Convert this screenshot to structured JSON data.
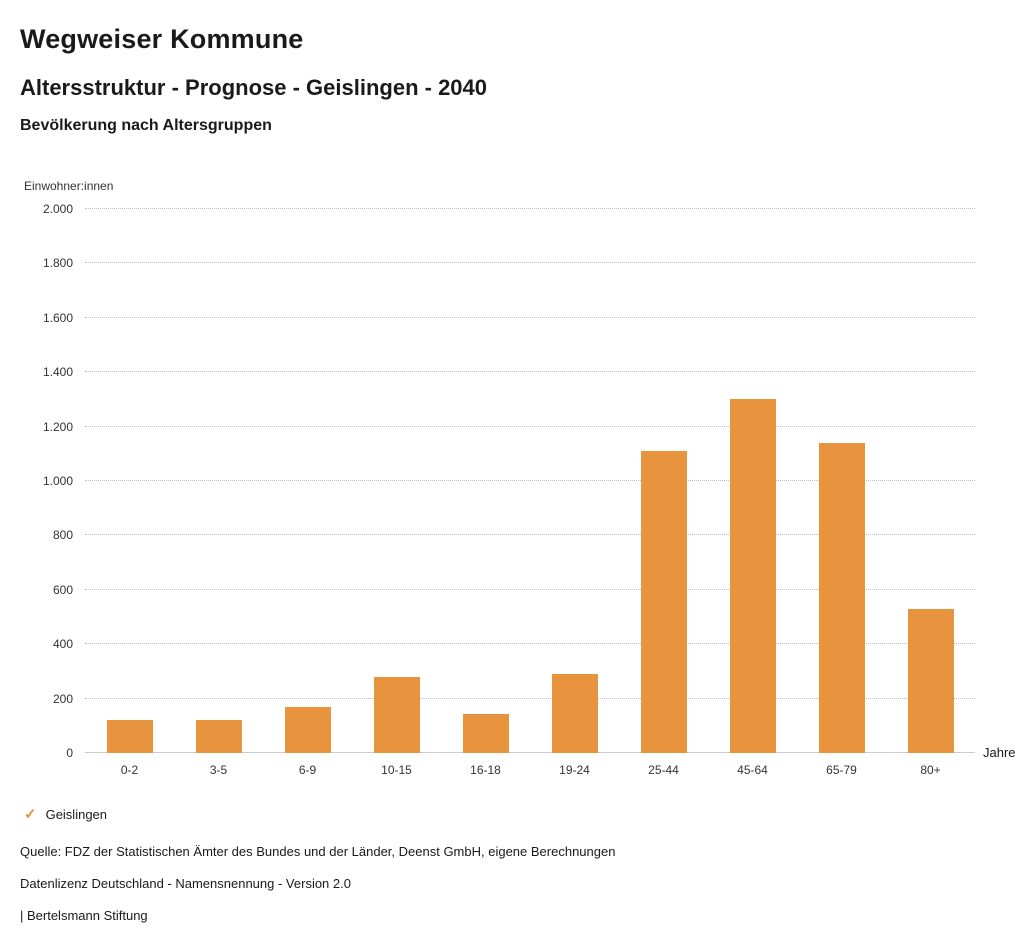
{
  "header": {
    "title": "Wegweiser Kommune",
    "subtitle": "Altersstruktur - Prognose - Geislingen - 2040",
    "chart_title": "Bevölkerung nach Altersgruppen"
  },
  "axis": {
    "y_label": "Einwohner:innen",
    "x_label": "Jahre"
  },
  "legend": {
    "check_icon": "✓",
    "label": "Geislingen"
  },
  "footer": {
    "source": "Quelle: FDZ der Statistischen Ämter des Bundes und der Länder, Deenst GmbH, eigene Berechnungen",
    "license": "Datenlizenz Deutschland - Namensnennung - Version 2.0",
    "attribution": "| Bertelsmann Stiftung"
  },
  "colors": {
    "bar": "#E8933D",
    "accent": "#E8933D"
  },
  "chart_data": {
    "type": "bar",
    "title": "Bevölkerung nach Altersgruppen",
    "xlabel": "Jahre",
    "ylabel": "Einwohner:innen",
    "series_name": "Geislingen",
    "categories": [
      "0-2",
      "3-5",
      "6-9",
      "10-15",
      "16-18",
      "19-24",
      "25-44",
      "45-64",
      "65-79",
      "80+"
    ],
    "values": [
      120,
      120,
      170,
      280,
      145,
      290,
      1110,
      1300,
      1140,
      530
    ],
    "ylim": [
      0,
      2000
    ],
    "ytick_values": [
      0,
      200,
      400,
      600,
      800,
      1000,
      1200,
      1400,
      1600,
      1800,
      2000
    ],
    "ytick_labels": [
      "0",
      "200",
      "400",
      "600",
      "800",
      "1.000",
      "1.200",
      "1.400",
      "1.600",
      "1.800",
      "2.000"
    ],
    "grid": true,
    "legend_position": "bottom"
  }
}
